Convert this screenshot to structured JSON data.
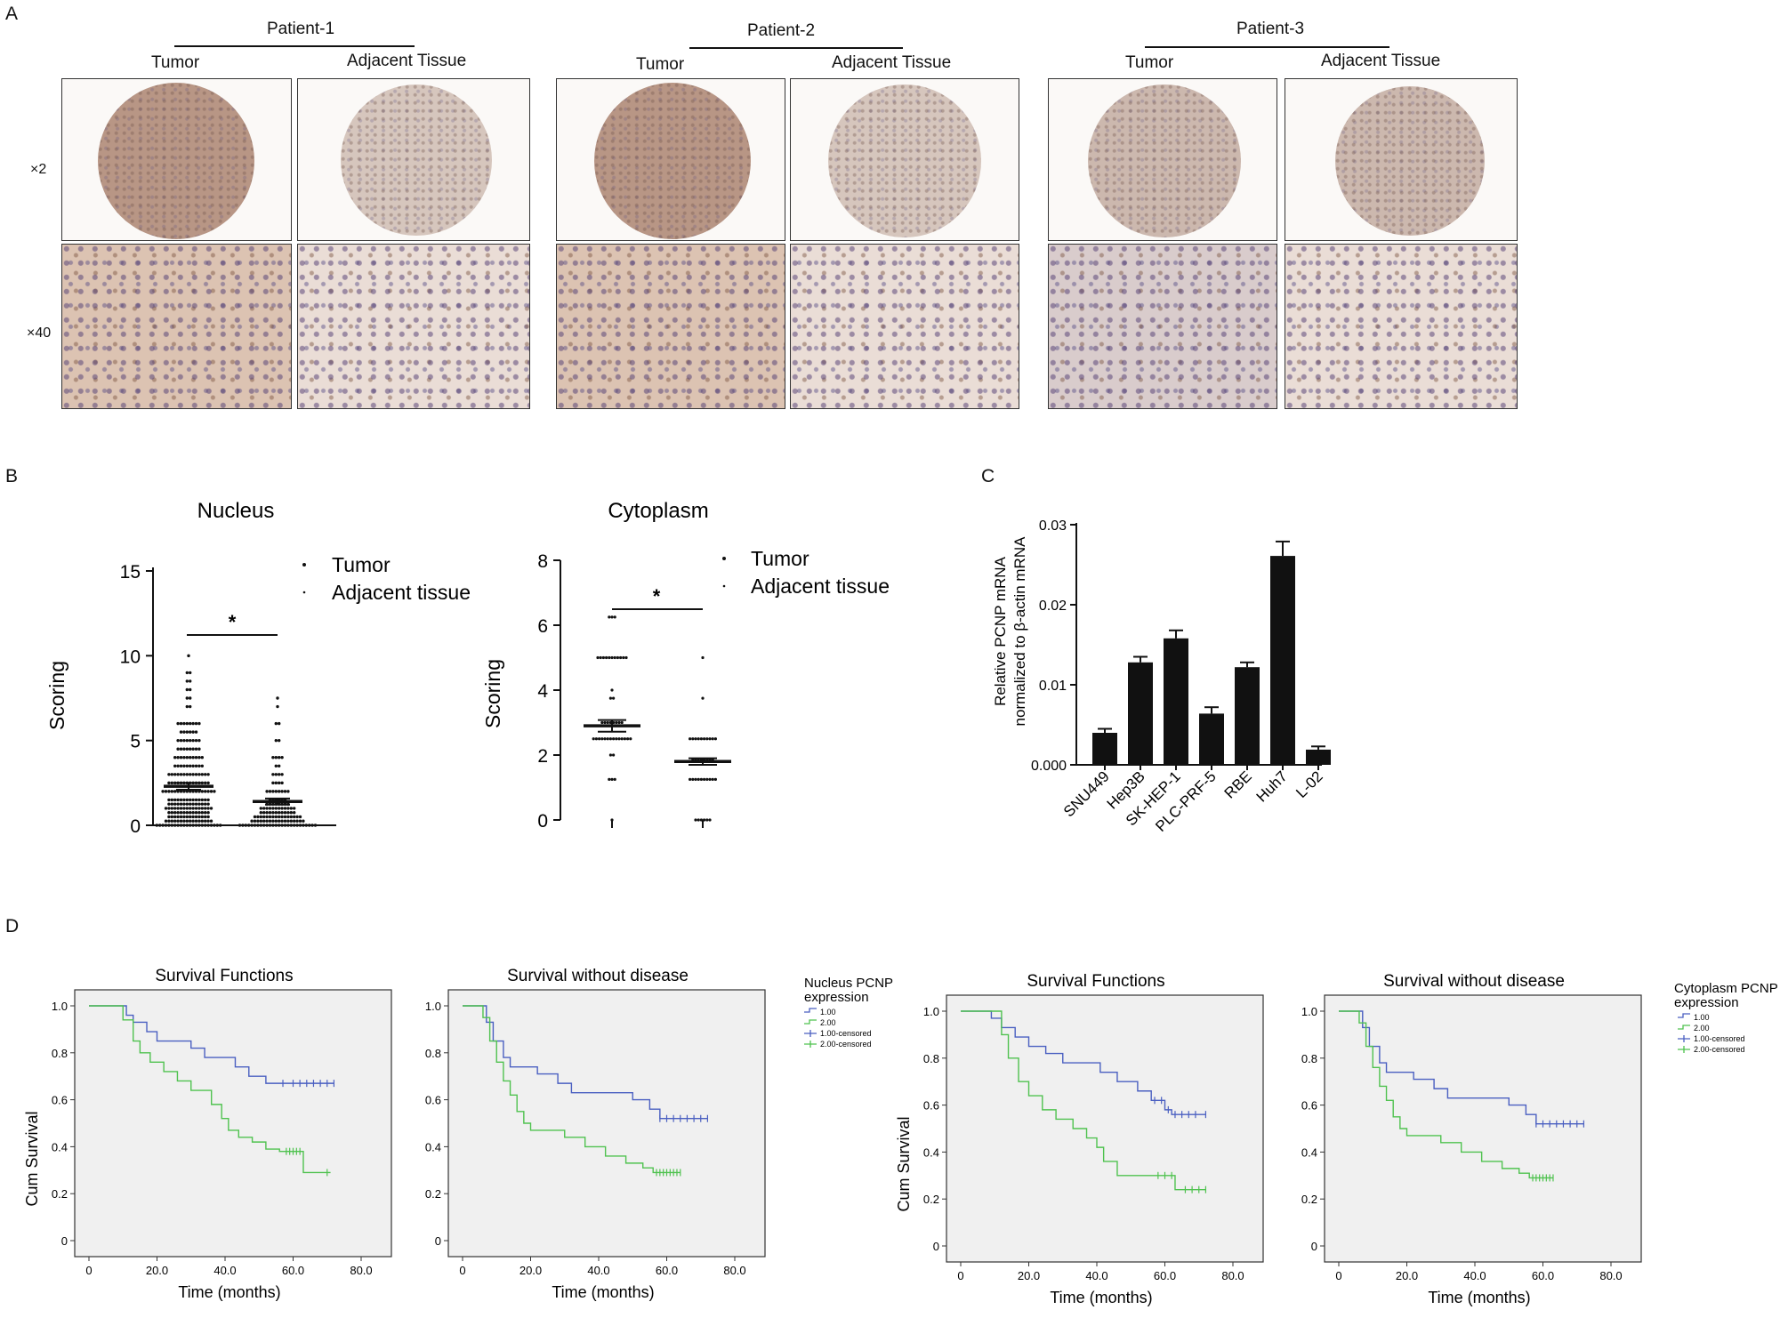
{
  "panels": {
    "a": "A",
    "b": "B",
    "c": "C",
    "d": "D"
  },
  "ihc": {
    "patients": [
      {
        "name": "Patient-1",
        "tumor": "Tumor",
        "adjacent": "Adjacent Tissue"
      },
      {
        "name": "Patient-2",
        "tumor": "Tumor",
        "adjacent": "Adjacent Tissue"
      },
      {
        "name": "Patient-3",
        "tumor": "Tumor",
        "adjacent": "Adjacent Tissue"
      }
    ],
    "mag_low": "×2",
    "mag_high": "×40"
  },
  "chart_data": [
    {
      "type": "scatter",
      "id": "nucleus",
      "title": "Nucleus",
      "ylabel": "Scoring",
      "ylim": [
        0,
        15
      ],
      "yticks": [
        0,
        5,
        10,
        15
      ],
      "legend": [
        "Tumor",
        "Adjacent tissue"
      ],
      "significance": "*",
      "groups": [
        {
          "name": "Tumor",
          "mean": 2.3,
          "sem": 0.2,
          "levels": [
            [
              0,
              22
            ],
            [
              0.25,
              16
            ],
            [
              0.5,
              14
            ],
            [
              0.75,
              14
            ],
            [
              1,
              16
            ],
            [
              1.25,
              14
            ],
            [
              1.5,
              14
            ],
            [
              2,
              18
            ],
            [
              2.5,
              14
            ],
            [
              3,
              14
            ],
            [
              3.5,
              10
            ],
            [
              4,
              10
            ],
            [
              4.5,
              8
            ],
            [
              5,
              8
            ],
            [
              5.5,
              6
            ],
            [
              6,
              8
            ],
            [
              7,
              2
            ],
            [
              7.5,
              2
            ],
            [
              8,
              2
            ],
            [
              8.5,
              2
            ],
            [
              9,
              2
            ],
            [
              10,
              1
            ]
          ]
        },
        {
          "name": "Adjacent tissue",
          "mean": 1.4,
          "sem": 0.18,
          "levels": [
            [
              0,
              26
            ],
            [
              0.25,
              18
            ],
            [
              0.5,
              16
            ],
            [
              0.75,
              12
            ],
            [
              1,
              12
            ],
            [
              1.25,
              8
            ],
            [
              1.5,
              6
            ],
            [
              2,
              8
            ],
            [
              2.5,
              4
            ],
            [
              3,
              4
            ],
            [
              3.5,
              2
            ],
            [
              4,
              4
            ],
            [
              5,
              2
            ],
            [
              6,
              2
            ],
            [
              7,
              1
            ],
            [
              7.5,
              1
            ]
          ]
        }
      ]
    },
    {
      "type": "scatter",
      "id": "cytoplasm",
      "title": "Cytoplasm",
      "ylabel": "Scoring",
      "ylim": [
        0,
        8
      ],
      "yticks": [
        0,
        2,
        4,
        6,
        8
      ],
      "legend": [
        "Tumor",
        "Adjacent tissue"
      ],
      "significance": "*",
      "groups": [
        {
          "name": "Tumor",
          "mean": 2.9,
          "sem": 0.18,
          "levels": [
            [
              0,
              1
            ],
            [
              1.25,
              3
            ],
            [
              2,
              2
            ],
            [
              2.5,
              14
            ],
            [
              3,
              8
            ],
            [
              3.75,
              2
            ],
            [
              4,
              1
            ],
            [
              5,
              11
            ],
            [
              6.25,
              3
            ]
          ]
        },
        {
          "name": "Adjacent tissue",
          "mean": 1.8,
          "sem": 0.1,
          "levels": [
            [
              0,
              6
            ],
            [
              1.25,
              10
            ],
            [
              1.875,
              8
            ],
            [
              2.5,
              10
            ],
            [
              3.75,
              1
            ],
            [
              5,
              1
            ]
          ]
        }
      ]
    },
    {
      "type": "bar",
      "id": "mrna",
      "ylabel_line1": "Relative PCNP mRNA",
      "ylabel_line2": "normalized to β-actin mRNA",
      "ylim": [
        0,
        0.03
      ],
      "yticks": [
        "0.000",
        "0.01",
        "0.02",
        "0.03"
      ],
      "categories": [
        "SNU449",
        "Hep3B",
        "SK-HEP-1",
        "PLC-PRF-5",
        "RBE",
        "Huh7",
        "L-02"
      ],
      "values": [
        0.004,
        0.0128,
        0.0158,
        0.0064,
        0.0122,
        0.0261,
        0.0019
      ],
      "errors": [
        0.0005,
        0.0007,
        0.001,
        0.0008,
        0.0006,
        0.0018,
        0.0004
      ]
    },
    {
      "type": "line",
      "id": "km1",
      "title": "Survival Functions",
      "xlabel": "Time (months)",
      "ylabel": "Cum Survival",
      "xticks": [
        "0",
        "20.0",
        "40.0",
        "60.0",
        "80.0"
      ],
      "yticks": [
        "0",
        "0.2",
        "0.4",
        "0.6",
        "0.8",
        "1.0"
      ],
      "series": [
        {
          "name": "1.00",
          "color": "#4a5fc1",
          "points": [
            [
              0,
              1
            ],
            [
              10,
              1
            ],
            [
              11,
              0.96
            ],
            [
              13,
              0.93
            ],
            [
              17,
              0.89
            ],
            [
              20,
              0.85
            ],
            [
              30,
              0.82
            ],
            [
              34,
              0.78
            ],
            [
              43,
              0.74
            ],
            [
              47,
              0.7
            ],
            [
              52,
              0.67
            ],
            [
              72,
              0.67
            ]
          ],
          "censored": [
            57,
            60,
            62,
            64,
            66,
            68,
            70,
            72
          ]
        },
        {
          "name": "2.00",
          "color": "#4fc24f",
          "points": [
            [
              0,
              1
            ],
            [
              8,
              1
            ],
            [
              10,
              0.94
            ],
            [
              13,
              0.85
            ],
            [
              15,
              0.8
            ],
            [
              18,
              0.76
            ],
            [
              22,
              0.72
            ],
            [
              26,
              0.68
            ],
            [
              30,
              0.64
            ],
            [
              36,
              0.58
            ],
            [
              39,
              0.52
            ],
            [
              41,
              0.47
            ],
            [
              44,
              0.44
            ],
            [
              48,
              0.42
            ],
            [
              52,
              0.39
            ],
            [
              56,
              0.38
            ],
            [
              62,
              0.38
            ],
            [
              63,
              0.29
            ],
            [
              71,
              0.29
            ]
          ],
          "censored": [
            58,
            59,
            60,
            61,
            62,
            70
          ]
        }
      ]
    },
    {
      "type": "line",
      "id": "km2",
      "title": "Survival without disease",
      "xlabel": "Time (months)",
      "ylabel": "",
      "xticks": [
        "0",
        "20.0",
        "40.0",
        "60.0",
        "80.0"
      ],
      "yticks": [
        "0",
        "0.2",
        "0.4",
        "0.6",
        "0.8",
        "1.0"
      ],
      "series": [
        {
          "name": "1.00",
          "color": "#4a5fc1",
          "points": [
            [
              0,
              1
            ],
            [
              6,
              1
            ],
            [
              7,
              0.93
            ],
            [
              9,
              0.85
            ],
            [
              12,
              0.78
            ],
            [
              14,
              0.74
            ],
            [
              22,
              0.71
            ],
            [
              28,
              0.67
            ],
            [
              32,
              0.63
            ],
            [
              50,
              0.6
            ],
            [
              55,
              0.56
            ],
            [
              58,
              0.52
            ],
            [
              72,
              0.52
            ]
          ],
          "censored": [
            58,
            60,
            62,
            64,
            66,
            68,
            70,
            72
          ]
        },
        {
          "name": "2.00",
          "color": "#4fc24f",
          "points": [
            [
              0,
              1
            ],
            [
              5,
              1
            ],
            [
              6,
              0.95
            ],
            [
              8,
              0.85
            ],
            [
              10,
              0.76
            ],
            [
              12,
              0.68
            ],
            [
              14,
              0.62
            ],
            [
              16,
              0.55
            ],
            [
              18,
              0.5
            ],
            [
              20,
              0.47
            ],
            [
              30,
              0.44
            ],
            [
              36,
              0.4
            ],
            [
              42,
              0.36
            ],
            [
              48,
              0.33
            ],
            [
              53,
              0.31
            ],
            [
              56,
              0.29
            ],
            [
              64,
              0.29
            ]
          ],
          "censored": [
            57,
            58,
            59,
            60,
            61,
            62,
            63,
            64
          ]
        }
      ]
    },
    {
      "type": "line",
      "id": "km3",
      "title": "Survival Functions",
      "xlabel": "Time (months)",
      "ylabel": "Cum Survival",
      "xticks": [
        "0",
        "20.0",
        "40.0",
        "60.0",
        "80.0"
      ],
      "yticks": [
        "0",
        "0.2",
        "0.4",
        "0.6",
        "0.8",
        "1.0"
      ],
      "series": [
        {
          "name": "1.00",
          "color": "#4a5fc1",
          "points": [
            [
              0,
              1
            ],
            [
              8,
              1
            ],
            [
              9,
              0.97
            ],
            [
              12,
              0.93
            ],
            [
              16,
              0.89
            ],
            [
              20,
              0.85
            ],
            [
              25,
              0.82
            ],
            [
              30,
              0.78
            ],
            [
              38,
              0.78
            ],
            [
              41,
              0.74
            ],
            [
              46,
              0.7
            ],
            [
              52,
              0.66
            ],
            [
              56,
              0.62
            ],
            [
              60,
              0.58
            ],
            [
              62,
              0.56
            ],
            [
              72,
              0.56
            ]
          ],
          "censored": [
            57,
            59,
            61,
            63,
            65,
            67,
            69,
            72
          ]
        },
        {
          "name": "2.00",
          "color": "#4fc24f",
          "points": [
            [
              0,
              1
            ],
            [
              10,
              1
            ],
            [
              12,
              0.9
            ],
            [
              14,
              0.8
            ],
            [
              17,
              0.7
            ],
            [
              20,
              0.64
            ],
            [
              24,
              0.58
            ],
            [
              28,
              0.54
            ],
            [
              33,
              0.5
            ],
            [
              37,
              0.46
            ],
            [
              40,
              0.42
            ],
            [
              42,
              0.36
            ],
            [
              46,
              0.3
            ],
            [
              58,
              0.3
            ],
            [
              63,
              0.24
            ],
            [
              72,
              0.24
            ]
          ],
          "censored": [
            58,
            60,
            62,
            66,
            68,
            70,
            72
          ]
        }
      ]
    },
    {
      "type": "line",
      "id": "km4",
      "title": "Survival without disease",
      "xlabel": "Time (months)",
      "ylabel": "",
      "xticks": [
        "0",
        "20.0",
        "40.0",
        "60.0",
        "80.0"
      ],
      "yticks": [
        "0",
        "0.2",
        "0.4",
        "0.6",
        "0.8",
        "1.0"
      ],
      "series": [
        {
          "name": "1.00",
          "color": "#4a5fc1",
          "points": [
            [
              0,
              1
            ],
            [
              6,
              1
            ],
            [
              7,
              0.93
            ],
            [
              9,
              0.85
            ],
            [
              12,
              0.78
            ],
            [
              14,
              0.74
            ],
            [
              22,
              0.71
            ],
            [
              28,
              0.67
            ],
            [
              32,
              0.63
            ],
            [
              50,
              0.6
            ],
            [
              55,
              0.56
            ],
            [
              58,
              0.52
            ],
            [
              72,
              0.52
            ]
          ],
          "censored": [
            58,
            60,
            62,
            64,
            66,
            68,
            70,
            72
          ]
        },
        {
          "name": "2.00",
          "color": "#4fc24f",
          "points": [
            [
              0,
              1
            ],
            [
              5,
              1
            ],
            [
              6,
              0.95
            ],
            [
              8,
              0.85
            ],
            [
              10,
              0.76
            ],
            [
              12,
              0.68
            ],
            [
              14,
              0.62
            ],
            [
              16,
              0.55
            ],
            [
              18,
              0.5
            ],
            [
              20,
              0.47
            ],
            [
              30,
              0.44
            ],
            [
              36,
              0.4
            ],
            [
              42,
              0.36
            ],
            [
              48,
              0.33
            ],
            [
              53,
              0.31
            ],
            [
              56,
              0.29
            ],
            [
              63,
              0.29
            ]
          ],
          "censored": [
            57,
            58,
            59,
            60,
            61,
            62,
            63
          ]
        }
      ]
    }
  ],
  "km_legends": [
    {
      "title_line1": "Nucleus PCNP",
      "title_line2": "expression",
      "items": [
        "1.00",
        "2.00",
        "1.00-censored",
        "2.00-censored"
      ]
    },
    {
      "title_line1": "Cytoplasm PCNP",
      "title_line2": "expression",
      "items": [
        "1.00",
        "2.00",
        "1.00-censored",
        "2.00-censored"
      ]
    }
  ]
}
